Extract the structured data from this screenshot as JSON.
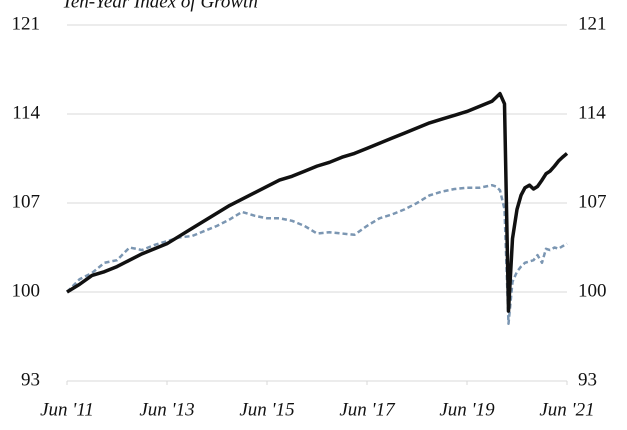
{
  "chart_data": {
    "type": "line",
    "title": "Ten-Year Index of Growth",
    "x": [
      2011.42,
      2011.67,
      2011.92,
      2012.17,
      2012.42,
      2012.67,
      2012.92,
      2013.17,
      2013.42,
      2013.67,
      2013.92,
      2014.17,
      2014.42,
      2014.67,
      2014.92,
      2015.17,
      2015.42,
      2015.67,
      2015.92,
      2016.17,
      2016.42,
      2016.67,
      2016.92,
      2017.17,
      2017.42,
      2017.67,
      2017.92,
      2018.17,
      2018.42,
      2018.67,
      2018.92,
      2019.17,
      2019.42,
      2019.67,
      2019.92,
      2020.0,
      2020.08,
      2020.17,
      2020.25,
      2020.33,
      2020.42,
      2020.5,
      2020.58,
      2020.67,
      2020.75,
      2020.83,
      2020.92,
      2021.0,
      2021.08,
      2021.17,
      2021.25,
      2021.33,
      2021.42
    ],
    "series": [
      {
        "color": "#111111",
        "dash": false,
        "values": [
          100,
          100.6,
          101.3,
          101.6,
          102.0,
          102.5,
          103.0,
          103.4,
          103.8,
          104.4,
          105.0,
          105.6,
          106.2,
          106.8,
          107.3,
          107.8,
          108.3,
          108.8,
          109.1,
          109.5,
          109.9,
          110.2,
          110.6,
          110.9,
          111.3,
          111.7,
          112.1,
          112.5,
          112.9,
          113.3,
          113.6,
          113.9,
          114.2,
          114.6,
          115.0,
          115.3,
          115.6,
          114.8,
          98.5,
          104.2,
          106.5,
          107.6,
          108.2,
          108.4,
          108.1,
          108.3,
          108.8,
          109.3,
          109.5,
          109.9,
          110.3,
          110.6,
          110.9
        ]
      },
      {
        "color": "#7b96b2",
        "dash": true,
        "values": [
          100,
          101,
          101.5,
          102.3,
          102.5,
          103.5,
          103.3,
          103.7,
          104,
          104.3,
          104.4,
          104.8,
          105.2,
          105.7,
          106.3,
          106.0,
          105.8,
          105.8,
          105.6,
          105.2,
          104.6,
          104.7,
          104.6,
          104.5,
          105.2,
          105.8,
          106.1,
          106.5,
          107.0,
          107.6,
          107.9,
          108.1,
          108.2,
          108.2,
          108.4,
          108.3,
          108.0,
          106.5,
          97.5,
          100.8,
          101.6,
          102.0,
          102.3,
          102.4,
          102.5,
          102.9,
          102.3,
          103.4,
          103.3,
          103.5,
          103.4,
          103.6,
          103.8
        ]
      }
    ],
    "xlim": [
      2011.42,
      2021.42
    ],
    "xticks": [
      {
        "value": 2011.42,
        "label": "Jun '11"
      },
      {
        "value": 2013.42,
        "label": "Jun '13"
      },
      {
        "value": 2015.42,
        "label": "Jun '15"
      },
      {
        "value": 2017.42,
        "label": "Jun '17"
      },
      {
        "value": 2019.42,
        "label": "Jun '19"
      },
      {
        "value": 2021.42,
        "label": "Jun '21"
      }
    ],
    "ylim": [
      93,
      121
    ],
    "yticks": [
      93,
      100,
      107,
      114,
      121
    ],
    "y2lim": [
      93,
      121
    ],
    "y2ticks": [
      93,
      100,
      107,
      114,
      121
    ],
    "grid": true
  }
}
